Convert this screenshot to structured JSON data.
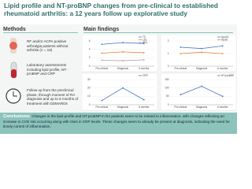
{
  "title": "Lipid profile and NT-proBNP changes from pre-clinical to established rheumatoid arthritis: a 12 years follow up explorative study",
  "methods": {
    "heading": "Methods",
    "items": [
      "RF and/or ACPA positive arthralgia patients without arthritis (n = 18)",
      "Laboratory assessments including lipid profile, NT-proBNP and CRP",
      "Follow up from the preclinical phase, through moment of RA diagnosis and up to 6 months of treatment with bDMARDs"
    ]
  },
  "findings_heading": "Main findings",
  "chart_data": [
    {
      "type": "line",
      "categories": [
        "Pre-clinical",
        "Diagnosis",
        "6 months"
      ],
      "ylim": [
        0,
        6
      ],
      "yticks": [
        0,
        2,
        4,
        6
      ],
      "series": [
        {
          "name": "TC",
          "color": "#4472c4",
          "values": [
            5.2,
            5.6,
            5.4
          ]
        },
        {
          "name": "LDL",
          "color": "#ed7d31",
          "values": [
            3.1,
            3.4,
            3.2
          ]
        },
        {
          "name": "HDL",
          "color": "#a5a5a5",
          "values": [
            1.4,
            1.3,
            1.5
          ]
        }
      ]
    },
    {
      "type": "line",
      "categories": [
        "Pre-clinical",
        "Diagnosis",
        "6 months"
      ],
      "ylim": [
        0,
        2
      ],
      "yticks": [
        0,
        1,
        2
      ],
      "series": [
        {
          "name": "ApoA1",
          "color": "#4472c4",
          "values": [
            1.5,
            1.4,
            1.6
          ]
        },
        {
          "name": "ApoB",
          "color": "#ed7d31",
          "values": [
            1.0,
            1.1,
            1.0
          ]
        }
      ]
    },
    {
      "type": "line",
      "categories": [
        "Pre-clinical",
        "Diagnosis",
        "6 months"
      ],
      "ylim": [
        0,
        30
      ],
      "yticks": [
        0,
        10,
        20,
        30
      ],
      "series": [
        {
          "name": "CRP",
          "color": "#4472c4",
          "values": [
            5,
            20,
            6
          ]
        }
      ]
    },
    {
      "type": "line",
      "categories": [
        "Pre-clinical",
        "Diagnosis",
        "6 months"
      ],
      "ylim": [
        0,
        150
      ],
      "yticks": [
        0,
        50,
        100,
        150
      ],
      "series": [
        {
          "name": "NT-proBNP",
          "color": "#4472c4",
          "values": [
            60,
            110,
            50
          ]
        }
      ]
    }
  ],
  "conclusions": {
    "label": "Conclusions:",
    "text": "Changes in the lipid profile and NT-proBNP in RA patients seem to be related to inflammation, with changes reflecting an increase in CVD risk occurring along with rises in CRP levels. These changes seem to already be present at diagnosis, indicating the need for timely control of inflammation."
  }
}
